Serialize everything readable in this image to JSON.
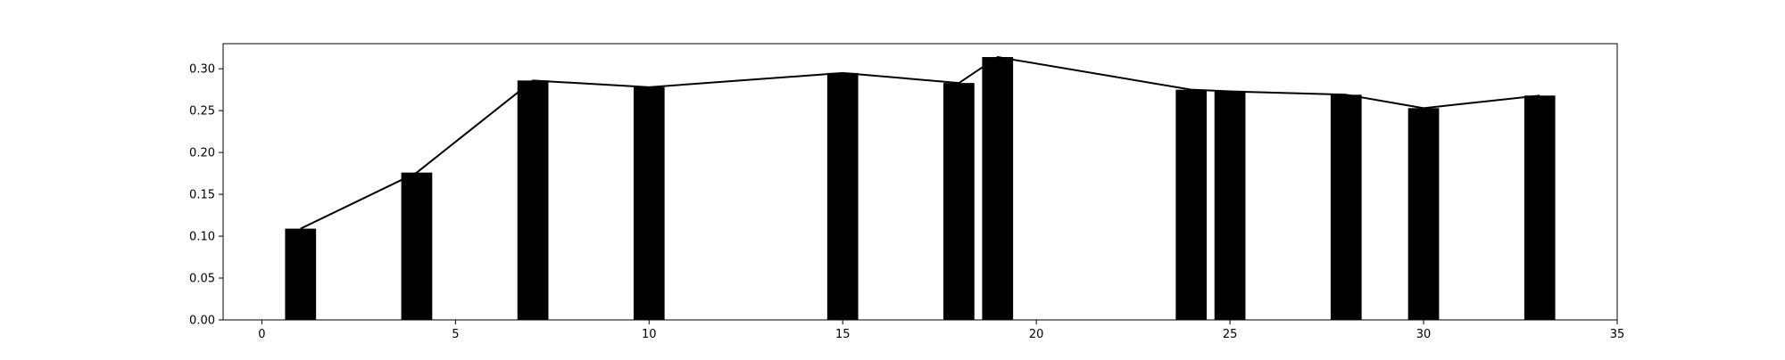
{
  "chart_data": {
    "type": "bar",
    "title": "",
    "xlabel": "",
    "ylabel": "",
    "xlim": [
      -1,
      35
    ],
    "ylim": [
      0,
      0.33
    ],
    "xticks": [
      0,
      5,
      10,
      15,
      20,
      25,
      30,
      35
    ],
    "yticks": [
      0.0,
      0.05,
      0.1,
      0.15,
      0.2,
      0.25,
      0.3
    ],
    "xtick_labels": [
      "0",
      "5",
      "10",
      "15",
      "20",
      "25",
      "30",
      "35"
    ],
    "ytick_labels": [
      "0.00",
      "0.05",
      "0.10",
      "0.15",
      "0.20",
      "0.25",
      "0.30"
    ],
    "grid": false,
    "legend": "none",
    "bar_width": 0.8,
    "colors": {
      "bar": "#000000",
      "line": "#000000",
      "axes": "#000000",
      "background": "#ffffff"
    },
    "x": [
      1,
      4,
      7,
      10,
      15,
      18,
      19,
      24,
      25,
      28,
      30,
      33
    ],
    "values": [
      0.109,
      0.176,
      0.286,
      0.278,
      0.295,
      0.283,
      0.314,
      0.275,
      0.273,
      0.269,
      0.253,
      0.268
    ],
    "overlay_line": {
      "type": "line",
      "x": [
        1,
        4,
        7,
        10,
        15,
        18,
        19,
        24,
        25,
        28,
        30,
        33
      ],
      "values": [
        0.109,
        0.176,
        0.286,
        0.278,
        0.295,
        0.283,
        0.314,
        0.275,
        0.273,
        0.269,
        0.253,
        0.268
      ]
    }
  }
}
